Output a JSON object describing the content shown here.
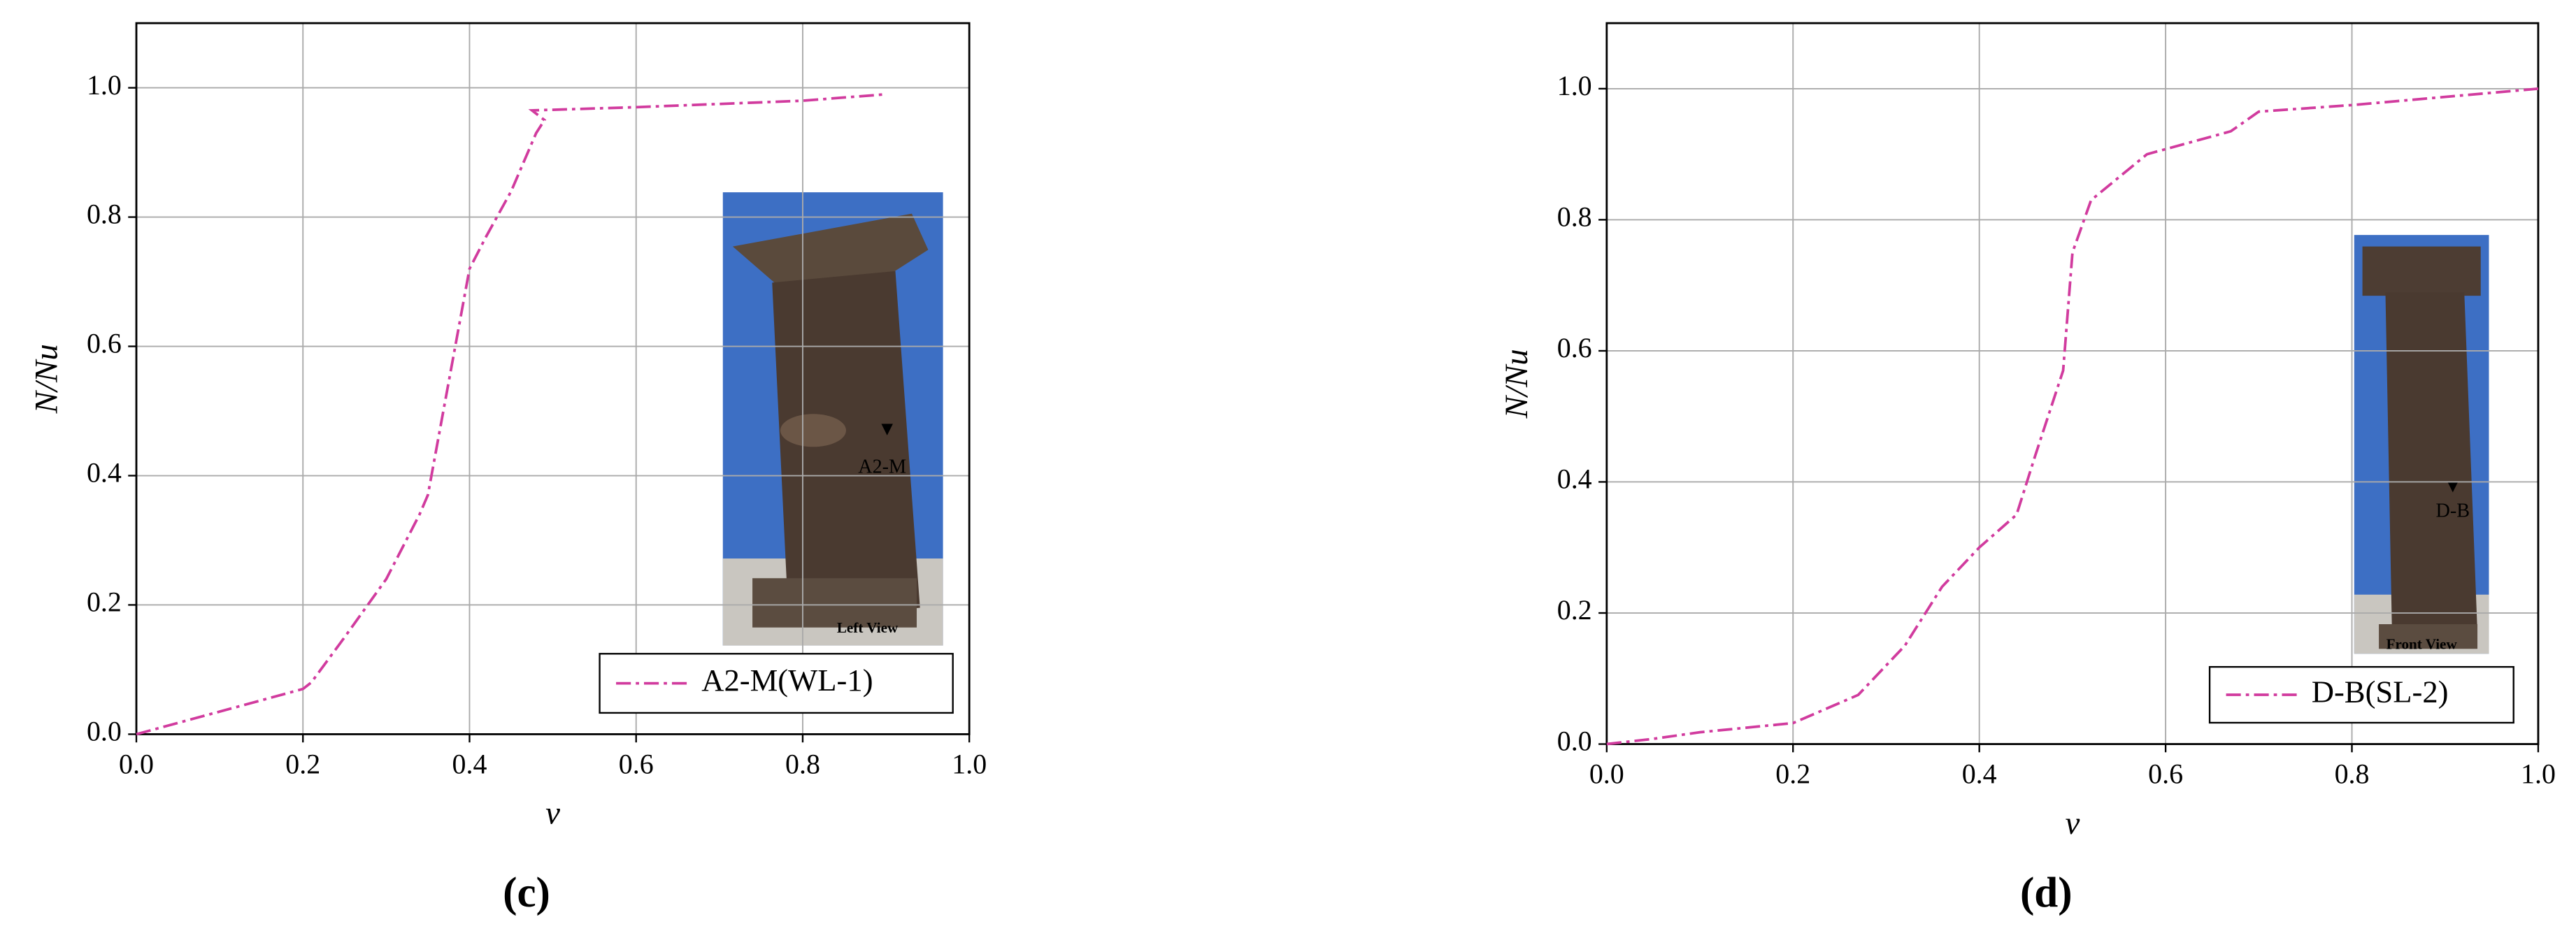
{
  "chart_data": [
    {
      "type": "line",
      "panel_label": "(c)",
      "xlabel": "ν",
      "ylabel": "N/Nu",
      "x": [
        0,
        0.2,
        0.21,
        0.25,
        0.3,
        0.34,
        0.35,
        0.38,
        0.4,
        0.42,
        0.45,
        0.47,
        0.48,
        0.49,
        0.475,
        0.6,
        0.8,
        0.9
      ],
      "series": [
        {
          "name": "A2-M(WL-1)",
          "color": "#d13b9e",
          "values": [
            0,
            0.07,
            0.08,
            0.15,
            0.24,
            0.34,
            0.37,
            0.58,
            0.72,
            0.77,
            0.84,
            0.9,
            0.93,
            0.95,
            0.965,
            0.97,
            0.98,
            0.99
          ]
        }
      ],
      "xlim": [
        0,
        1
      ],
      "ylim": [
        0,
        1.1
      ],
      "xticks": [
        {
          "value": 0,
          "label": "0.0"
        },
        0.2,
        0.4,
        0.6,
        0.8,
        {
          "value": 1,
          "label": "1.0"
        }
      ],
      "yticks": [
        {
          "value": 0,
          "label": "0.0"
        },
        0.2,
        0.4,
        0.6,
        0.8,
        {
          "value": 1,
          "label": "1.0"
        }
      ],
      "grid": true,
      "annotations": [
        "A2-M",
        "Left View"
      ]
    },
    {
      "type": "line",
      "panel_label": "(d)",
      "xlabel": "ν",
      "ylabel": "N/Nu",
      "x": [
        0,
        0.05,
        0.1,
        0.2,
        0.27,
        0.32,
        0.36,
        0.4,
        0.44,
        0.46,
        0.49,
        0.5,
        0.52,
        0.58,
        0.67,
        0.7,
        0.8,
        1.0
      ],
      "series": [
        {
          "name": "D-B(SL-2)",
          "color": "#d13b9e",
          "values": [
            0,
            0.008,
            0.018,
            0.032,
            0.075,
            0.15,
            0.24,
            0.3,
            0.35,
            0.44,
            0.57,
            0.75,
            0.83,
            0.9,
            0.935,
            0.965,
            0.975,
            1.0
          ]
        }
      ],
      "xlim": [
        0,
        1
      ],
      "ylim": [
        0,
        1.1
      ],
      "xticks": [
        {
          "value": 0,
          "label": "0.0"
        },
        0.2,
        0.4,
        0.6,
        0.8,
        {
          "value": 1,
          "label": "1.0"
        }
      ],
      "yticks": [
        {
          "value": 0,
          "label": "0.0"
        },
        0.2,
        0.4,
        0.6,
        0.8,
        {
          "value": 1,
          "label": "1.0"
        }
      ],
      "grid": true,
      "annotations": [
        "D-B",
        "Front View"
      ]
    }
  ]
}
